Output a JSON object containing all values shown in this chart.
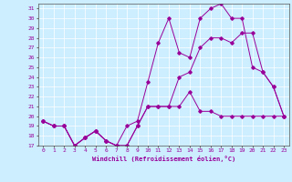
{
  "xlabel": "Windchill (Refroidissement éolien,°C)",
  "xlim": [
    -0.5,
    23.5
  ],
  "ylim": [
    17,
    31.5
  ],
  "yticks": [
    17,
    18,
    19,
    20,
    21,
    22,
    23,
    24,
    25,
    26,
    27,
    28,
    29,
    30,
    31
  ],
  "xticks": [
    0,
    1,
    2,
    3,
    4,
    5,
    6,
    7,
    8,
    9,
    10,
    11,
    12,
    13,
    14,
    15,
    16,
    17,
    18,
    19,
    20,
    21,
    22,
    23
  ],
  "line_color": "#990099",
  "bg_color": "#cceeff",
  "line1_y": [
    19.5,
    19.0,
    19.0,
    17.0,
    17.8,
    18.5,
    17.5,
    17.0,
    17.0,
    19.0,
    21.0,
    21.0,
    21.0,
    21.0,
    22.5,
    20.5,
    20.5,
    20.0,
    20.0,
    20.0,
    20.0,
    20.0,
    20.0,
    20.0
  ],
  "line2_y": [
    19.5,
    19.0,
    19.0,
    17.0,
    17.8,
    18.5,
    17.5,
    17.0,
    19.0,
    19.5,
    23.5,
    27.5,
    30.0,
    26.5,
    26.0,
    30.0,
    31.0,
    31.5,
    30.0,
    30.0,
    25.0,
    24.5,
    23.0,
    20.0
  ],
  "line3_y": [
    19.5,
    19.0,
    19.0,
    17.0,
    17.8,
    18.5,
    17.5,
    17.0,
    17.0,
    19.0,
    21.0,
    21.0,
    21.0,
    24.0,
    24.5,
    27.0,
    28.0,
    28.0,
    27.5,
    28.5,
    28.5,
    24.5,
    23.0,
    20.0
  ]
}
